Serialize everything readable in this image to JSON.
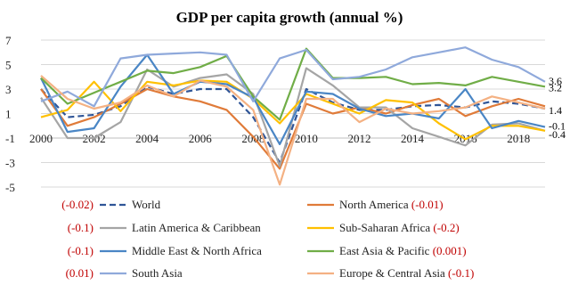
{
  "chart_data": {
    "type": "line",
    "title": "GDP per capita growth (annual %)",
    "xlabel": "",
    "ylabel": "",
    "x": [
      2000,
      2001,
      2002,
      2003,
      2004,
      2005,
      2006,
      2007,
      2008,
      2009,
      2010,
      2011,
      2012,
      2013,
      2014,
      2015,
      2016,
      2017,
      2018,
      2019
    ],
    "x_tick_labels": [
      "2000",
      "2002",
      "2004",
      "2006",
      "2008",
      "2010",
      "2012",
      "2014",
      "2016",
      "2018"
    ],
    "y_ticks": [
      7,
      5,
      3,
      1,
      -1,
      -3,
      -5
    ],
    "ylim": [
      -5,
      7
    ],
    "xlim": [
      2000,
      2019
    ],
    "grid": true,
    "legend_placement": "bottom",
    "series": [
      {
        "name": "World",
        "trend": "(-0.02)",
        "color": "#2f5597",
        "dashed": true,
        "values": [
          3.0,
          0.7,
          0.9,
          1.6,
          3.2,
          2.6,
          3.0,
          3.0,
          0.7,
          -3.0,
          3.0,
          1.9,
          1.3,
          1.3,
          1.6,
          1.7,
          1.5,
          2.0,
          1.8,
          1.4
        ]
      },
      {
        "name": "North America",
        "trend": "(-0.01)",
        "color": "#e07b39",
        "dashed": false,
        "values": [
          3.0,
          0.0,
          0.7,
          1.8,
          3.0,
          2.4,
          2.0,
          1.3,
          -0.9,
          -3.5,
          1.8,
          1.0,
          1.5,
          1.0,
          1.7,
          2.2,
          0.8,
          1.6,
          2.2,
          1.6
        ]
      },
      {
        "name": "Latin America & Caribbean",
        "trend": "(-0.1)",
        "color": "#a5a5a5",
        "dashed": false,
        "values": [
          2.3,
          -1.0,
          -1.0,
          0.3,
          4.6,
          3.2,
          3.9,
          4.2,
          2.6,
          -3.3,
          4.7,
          3.3,
          1.5,
          1.5,
          -0.2,
          -0.9,
          -1.6,
          0.1,
          0.2,
          -0.4
        ]
      },
      {
        "name": "Sub-Saharan Africa",
        "trend": "(-0.2)",
        "color": "#ffc000",
        "dashed": false,
        "values": [
          0.7,
          1.3,
          3.6,
          1.2,
          3.6,
          3.3,
          3.7,
          3.6,
          2.2,
          0.2,
          2.6,
          1.8,
          1.0,
          2.1,
          1.9,
          0.2,
          -1.1,
          0.0,
          0.0,
          -0.4
        ]
      },
      {
        "name": "Middle East & North Africa",
        "trend": "(-0.1)",
        "color": "#4a86c5",
        "dashed": false,
        "values": [
          3.9,
          -0.5,
          -0.2,
          3.2,
          5.8,
          2.6,
          3.6,
          3.4,
          2.3,
          -1.5,
          2.8,
          2.6,
          1.4,
          0.8,
          1.0,
          0.6,
          3.0,
          -0.2,
          0.4,
          -0.1
        ]
      },
      {
        "name": "East Asia & Pacific",
        "trend": "(0.001)",
        "color": "#70ad47",
        "dashed": false,
        "values": [
          3.9,
          1.8,
          2.7,
          3.6,
          4.5,
          4.3,
          4.8,
          5.7,
          2.4,
          0.5,
          6.3,
          3.9,
          3.9,
          4.0,
          3.4,
          3.5,
          3.3,
          4.0,
          3.6,
          3.2
        ]
      },
      {
        "name": "South Asia",
        "trend": "(0.01)",
        "color": "#8fa9db",
        "dashed": false,
        "values": [
          2.0,
          2.8,
          1.6,
          5.5,
          5.8,
          5.9,
          6.0,
          5.8,
          2.0,
          5.5,
          6.2,
          3.8,
          4.0,
          4.6,
          5.6,
          6.0,
          6.4,
          5.4,
          4.8,
          3.6
        ]
      },
      {
        "name": "Europe & Central Asia",
        "trend": "(-0.1)",
        "color": "#f4b183",
        "dashed": false,
        "values": [
          4.1,
          2.2,
          1.4,
          1.9,
          3.3,
          2.4,
          3.7,
          3.2,
          1.3,
          -4.8,
          2.2,
          2.2,
          0.3,
          1.4,
          1.0,
          1.2,
          1.5,
          2.4,
          1.9,
          1.4
        ]
      }
    ],
    "end_labels": [
      {
        "text": "3.6",
        "value": 3.6
      },
      {
        "text": "3.2",
        "value": 3.2
      },
      {
        "text": "1.4",
        "value": 1.4
      },
      {
        "text": "-0.1",
        "value": -0.1
      },
      {
        "text": "-0.4",
        "value": -0.4
      }
    ],
    "trend_color": "#c00000",
    "grid_color": "#d9d9d9",
    "axis_color": "#bfbfbf"
  }
}
